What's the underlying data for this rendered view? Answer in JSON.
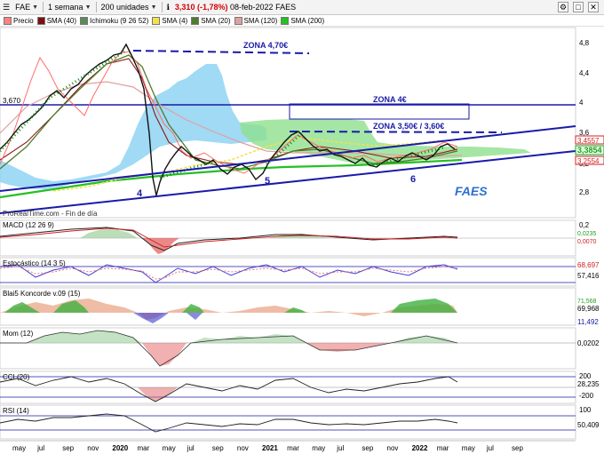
{
  "toolbar": {
    "ticker": "FAE",
    "period": "1 semana",
    "units": "200 unidades",
    "price": "3,310",
    "change": "(-1,78%)",
    "date": "08-feb-2022",
    "name": "FAES"
  },
  "legend": [
    {
      "label": "Precio",
      "color": "#ff8080"
    },
    {
      "label": "SMA (40)",
      "color": "#7a1010"
    },
    {
      "label": "Ichimoku (9 26 52)",
      "color": "#5a8a5a"
    },
    {
      "label": "SMA (4)",
      "color": "#f1e34a"
    },
    {
      "label": "SMA (20)",
      "color": "#4f7c2a"
    },
    {
      "label": "SMA (120)",
      "color": "#e0a0a0"
    },
    {
      "label": "SMA (200)",
      "color": "#24c024"
    }
  ],
  "main": {
    "zones": [
      "ZONA 4,70€",
      "ZONA 4€",
      "ZONA 3,50€ / 3,60€"
    ],
    "waves": [
      "4",
      "5",
      "6"
    ],
    "watermark": "FAES",
    "source": "ProRealTime.com - Fin de día",
    "left_level": "3,670",
    "yticks": [
      "4,8",
      "4,4",
      "4",
      "3,6",
      "3,2",
      "2,8"
    ],
    "price_tags": [
      {
        "text": "3,4557",
        "color": "#d02020"
      },
      {
        "text": "3,3854",
        "color": "#20a020"
      },
      {
        "text": "3,2554",
        "color": "#d02020"
      }
    ]
  },
  "panels": [
    {
      "title": "MACD (12 26 9)",
      "ticks": [
        "0,2",
        "0,0235",
        "0,0070"
      ]
    },
    {
      "title": "Estocástico (14 3 5)",
      "ticks": [
        "68,697",
        "57,416"
      ]
    },
    {
      "title": "Blai5 Koncorde v.09 (15)",
      "ticks": [
        "71,568",
        "69,968",
        "11,492"
      ]
    },
    {
      "title": "Mom (12)",
      "ticks": [
        "0,0202"
      ]
    },
    {
      "title": "CCI (20)",
      "ticks": [
        "200",
        "28,235",
        "-200"
      ]
    },
    {
      "title": "RSI (14)",
      "ticks": [
        "100",
        "50,409"
      ]
    }
  ],
  "xaxis": [
    "may",
    "jul",
    "sep",
    "nov",
    "2020",
    "mar",
    "may",
    "jul",
    "sep",
    "nov",
    "2021",
    "mar",
    "may",
    "jul",
    "sep",
    "nov",
    "2022",
    "mar",
    "may",
    "jul",
    "sep"
  ],
  "colors": {
    "accent_blue": "#1a1aa8",
    "down": "#d40000",
    "cloud": "#6ec8ef",
    "green_cloud": "#7ad27a"
  }
}
